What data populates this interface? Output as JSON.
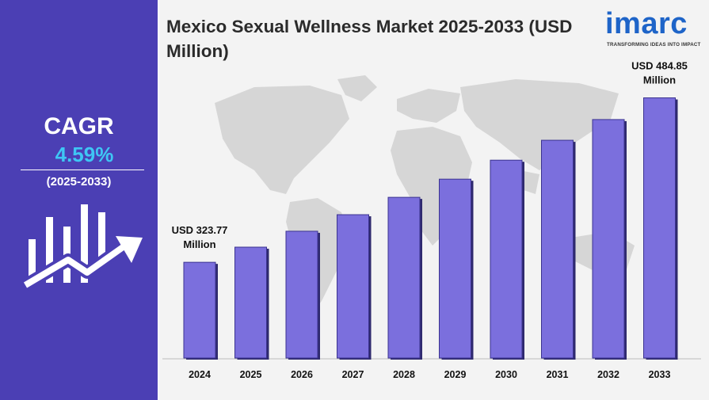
{
  "title": "Mexico Sexual Wellness Market 2025-2033 (USD Million)",
  "brand": {
    "name": "imarc",
    "tagline": "TRANSFORMING IDEAS INTO IMPACT",
    "color": "#1e64c8"
  },
  "cagr": {
    "label": "CAGR",
    "value": "4.59%",
    "period": "(2025-2033)",
    "panel_color": "#4b3fb4",
    "value_color": "#3ec6f4"
  },
  "chart_data": {
    "type": "bar",
    "categories": [
      "2024",
      "2025",
      "2026",
      "2027",
      "2028",
      "2029",
      "2030",
      "2031",
      "2032",
      "2033"
    ],
    "values": [
      323.77,
      338.6,
      354.2,
      370.4,
      387.4,
      405.2,
      423.8,
      443.3,
      463.6,
      484.85
    ],
    "ylim": [
      230,
      500
    ],
    "bar_color": "#7b6fdd",
    "annotations": [
      {
        "index": 0,
        "line1": "USD 323.77",
        "line2": "Million"
      },
      {
        "index": 9,
        "line1": "USD 484.85",
        "line2": "Million"
      }
    ],
    "legend": "none",
    "grid": false
  }
}
